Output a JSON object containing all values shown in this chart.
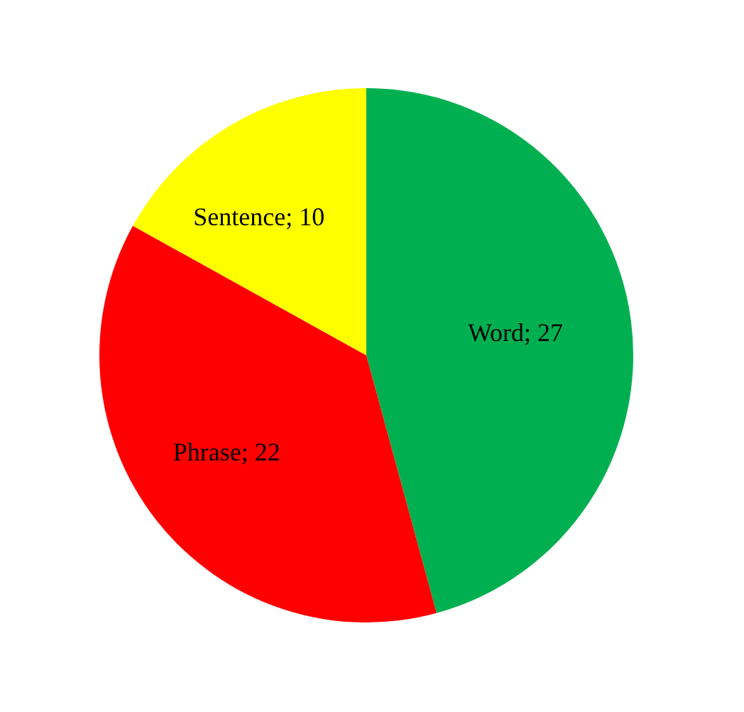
{
  "chart_data": {
    "type": "pie",
    "categories": [
      "Word",
      "Phrase",
      "Sentence"
    ],
    "values": [
      27,
      22,
      10
    ],
    "colors": [
      "#00b050",
      "#ff0000",
      "#ffff00"
    ],
    "value_labels": [
      "; 27",
      "; 22",
      "; 10"
    ]
  }
}
